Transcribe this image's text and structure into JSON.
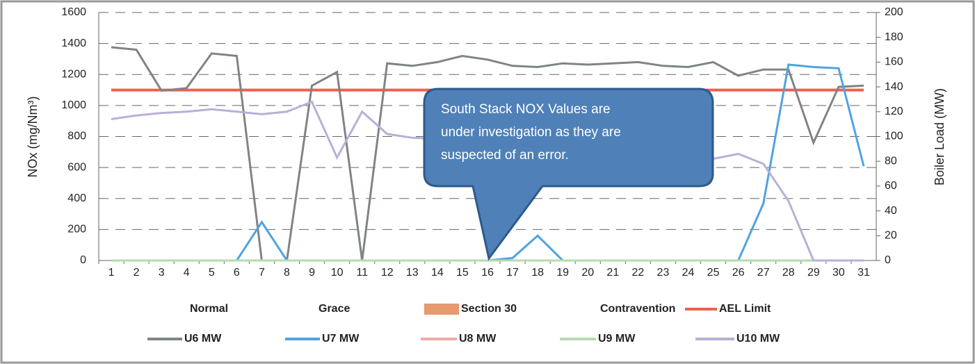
{
  "chart_data": {
    "type": "line",
    "y_label": "NOx (mg/Nm³)",
    "y2_label": "Boiler Load (MW)",
    "annotation": [
      "South Stack NOX Values are",
      "under investigation as they are",
      "suspected of an error."
    ],
    "categories": [
      "1",
      "2",
      "3",
      "4",
      "5",
      "6",
      "7",
      "8",
      "9",
      "10",
      "11",
      "12",
      "13",
      "14",
      "15",
      "16",
      "17",
      "18",
      "19",
      "20",
      "21",
      "22",
      "23",
      "24",
      "25",
      "26",
      "27",
      "28",
      "29",
      "30",
      "31"
    ],
    "ylim": [
      0,
      1600
    ],
    "yticks": [
      0,
      200,
      400,
      600,
      800,
      1000,
      1200,
      1400,
      1600
    ],
    "y2lim": [
      0,
      200
    ],
    "y2ticks": [
      0,
      20,
      40,
      60,
      80,
      100,
      120,
      140,
      160,
      180,
      200
    ],
    "grid": true,
    "legend": "bottom",
    "series": [
      {
        "name": "Normal",
        "type": "bar",
        "values": [
          0,
          0,
          0,
          0,
          0,
          0,
          0,
          0,
          0,
          0,
          0,
          0,
          0,
          0,
          0,
          0,
          0,
          0,
          0,
          0,
          0,
          0,
          0,
          0,
          0,
          0,
          0,
          0,
          0,
          0,
          0
        ]
      },
      {
        "name": "Grace",
        "type": "bar",
        "values": [
          0,
          0,
          0,
          0,
          0,
          0,
          0,
          0,
          0,
          0,
          0,
          0,
          0,
          0,
          0,
          0,
          0,
          0,
          0,
          0,
          0,
          0,
          0,
          0,
          0,
          0,
          0,
          0,
          0,
          0,
          0
        ]
      },
      {
        "name": "Section 30",
        "type": "bar",
        "color": "#e59a6f",
        "values": [
          0,
          0,
          0,
          0,
          0,
          0,
          0,
          0,
          0,
          0,
          0,
          0,
          0,
          0,
          0,
          0,
          0,
          0,
          0,
          0,
          0,
          0,
          0,
          0,
          0,
          0,
          0,
          0,
          0,
          0,
          0
        ]
      },
      {
        "name": "Contravention",
        "type": "bar",
        "values": [
          0,
          0,
          0,
          0,
          0,
          0,
          0,
          0,
          0,
          0,
          0,
          0,
          0,
          0,
          0,
          0,
          0,
          0,
          0,
          0,
          0,
          0,
          0,
          0,
          0,
          0,
          0,
          0,
          0,
          0,
          0
        ]
      },
      {
        "name": "AEL Limit",
        "type": "line",
        "color": "#ef5f4f",
        "values": [
          1100,
          1100,
          1100,
          1100,
          1100,
          1100,
          1100,
          1100,
          1100,
          1100,
          1100,
          1100,
          1100,
          1100,
          1100,
          1100,
          1100,
          1100,
          1100,
          1100,
          1100,
          1100,
          1100,
          1100,
          1100,
          1100,
          1100,
          1100,
          1100,
          1100,
          1100
        ]
      },
      {
        "name": "U6 MW",
        "type": "line",
        "axis": "y2",
        "color": "#7f8583",
        "values": [
          172,
          170,
          137,
          139,
          167,
          165,
          0,
          0,
          141,
          152,
          0,
          159,
          157,
          160,
          165,
          162,
          157,
          156,
          159,
          158,
          159,
          160,
          157,
          156,
          160,
          149,
          154,
          154,
          95,
          140,
          141
        ]
      },
      {
        "name": "U7 MW",
        "type": "line",
        "axis": "y2",
        "color": "#4fa3e0",
        "values": [
          0,
          0,
          0,
          0,
          0,
          0,
          31,
          0,
          0,
          0,
          0,
          0,
          0,
          0,
          0,
          0,
          2,
          20,
          0,
          0,
          0,
          0,
          0,
          0,
          0,
          0,
          46,
          158,
          156,
          155,
          76
        ]
      },
      {
        "name": "U8 MW",
        "type": "line",
        "axis": "y2",
        "color": "#f2a8a8",
        "values": [
          0,
          0,
          0,
          0,
          0,
          0,
          0,
          0,
          0,
          0,
          0,
          0,
          0,
          0,
          0,
          0,
          0,
          0,
          0,
          0,
          0,
          0,
          0,
          0,
          0,
          0,
          0,
          0,
          0,
          0,
          0
        ]
      },
      {
        "name": "U9 MW",
        "type": "line",
        "axis": "y2",
        "color": "#b5dbb0",
        "values": [
          0,
          0,
          0,
          0,
          0,
          0,
          0,
          0,
          0,
          0,
          0,
          0,
          0,
          0,
          0,
          0,
          0,
          0,
          0,
          0,
          0,
          0,
          0,
          0,
          0,
          0,
          0,
          0,
          0,
          0,
          0
        ]
      },
      {
        "name": "U10 MW",
        "type": "line",
        "axis": "y2",
        "color": "#b9afd6",
        "values": [
          114,
          117,
          119,
          120,
          122,
          120,
          118,
          120,
          128,
          83,
          120,
          102,
          99,
          98,
          96,
          95,
          93,
          92,
          90,
          89,
          88,
          87,
          86,
          84,
          82,
          86,
          78,
          48,
          0,
          0,
          0
        ]
      }
    ]
  }
}
